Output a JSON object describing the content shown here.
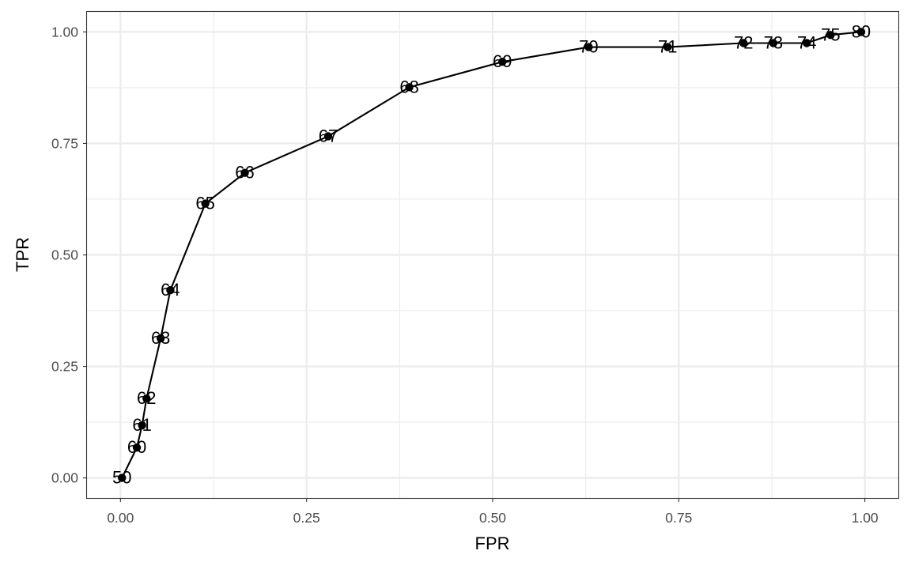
{
  "chart_data": {
    "type": "line",
    "xlabel": "FPR",
    "ylabel": "TPR",
    "xlim": [
      -0.045,
      1.045
    ],
    "ylim": [
      -0.045,
      1.045
    ],
    "x_ticks": [
      0.0,
      0.25,
      0.5,
      0.75,
      1.0
    ],
    "x_tick_labels": [
      "0.00",
      "0.25",
      "0.50",
      "0.75",
      "1.00"
    ],
    "y_ticks": [
      0.0,
      0.25,
      0.5,
      0.75,
      1.0
    ],
    "y_tick_labels": [
      "0.00",
      "0.25",
      "0.50",
      "0.75",
      "1.00"
    ],
    "grid": true,
    "legend": "none",
    "series": [
      {
        "points": [
          {
            "x": 0.002,
            "y": 0.0,
            "label": "50"
          },
          {
            "x": 0.022,
            "y": 0.068,
            "label": "60"
          },
          {
            "x": 0.029,
            "y": 0.118,
            "label": "61"
          },
          {
            "x": 0.035,
            "y": 0.178,
            "label": "62"
          },
          {
            "x": 0.054,
            "y": 0.313,
            "label": "63"
          },
          {
            "x": 0.067,
            "y": 0.421,
            "label": "64"
          },
          {
            "x": 0.114,
            "y": 0.615,
            "label": "65"
          },
          {
            "x": 0.167,
            "y": 0.684,
            "label": "66"
          },
          {
            "x": 0.279,
            "y": 0.766,
            "label": "67"
          },
          {
            "x": 0.388,
            "y": 0.876,
            "label": "68"
          },
          {
            "x": 0.513,
            "y": 0.933,
            "label": "69"
          },
          {
            "x": 0.629,
            "y": 0.966,
            "label": "70"
          },
          {
            "x": 0.735,
            "y": 0.966,
            "label": "71"
          },
          {
            "x": 0.837,
            "y": 0.975,
            "label": "72"
          },
          {
            "x": 0.877,
            "y": 0.975,
            "label": "73"
          },
          {
            "x": 0.922,
            "y": 0.975,
            "label": "74"
          },
          {
            "x": 0.954,
            "y": 0.993,
            "label": "75"
          },
          {
            "x": 0.995,
            "y": 1.0,
            "label": "80"
          }
        ]
      }
    ]
  }
}
